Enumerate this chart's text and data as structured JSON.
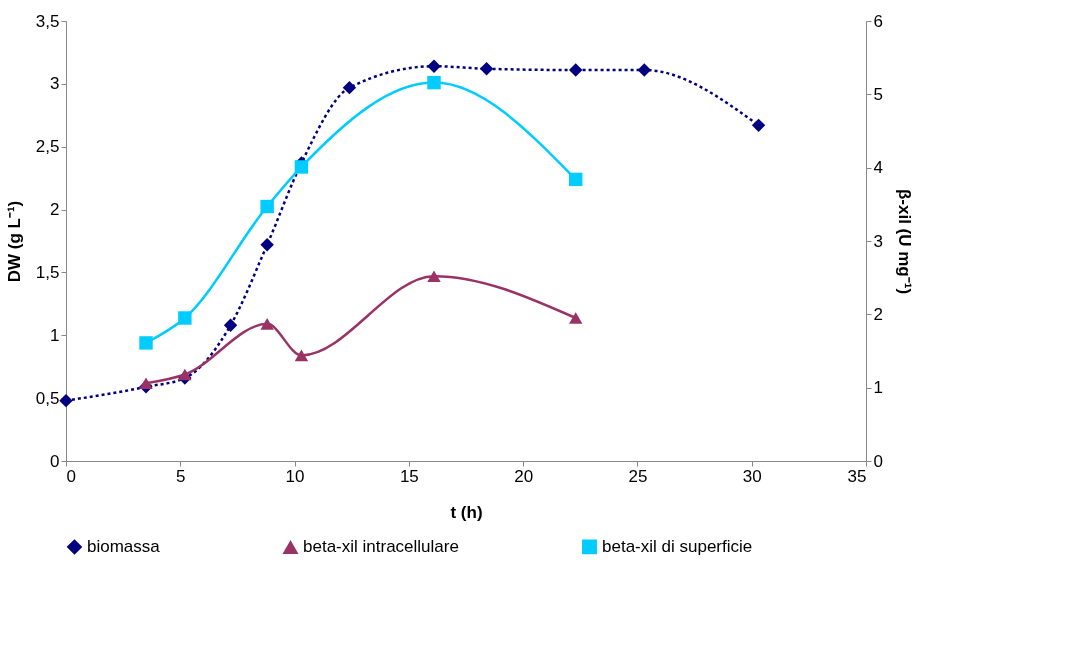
{
  "chart_data": {
    "type": "line",
    "xlabel": "t (h)",
    "ylabel": "DW (g L⁻¹)",
    "y2label": "β-xil (U mg⁻¹)",
    "xlim": [
      0,
      35
    ],
    "xticks": [
      0,
      5,
      10,
      15,
      20,
      25,
      30,
      35
    ],
    "ylim": [
      0,
      3.5
    ],
    "yticks": [
      0,
      {
        "value": 0.5,
        "label": "0,5"
      },
      1,
      {
        "value": 1.5,
        "label": "1,5"
      },
      2,
      {
        "value": 2.5,
        "label": "2,5"
      },
      3,
      {
        "value": 3.5,
        "label": "3,5"
      }
    ],
    "y2lim": [
      0,
      6
    ],
    "y2ticks": [
      0,
      1,
      2,
      3,
      4,
      5,
      6
    ],
    "grid": false,
    "legend": "bottom",
    "series": [
      {
        "name": "biomassa",
        "color": "#000080",
        "marker": "diamond",
        "line_style": "dotted",
        "x": [
          0,
          3.5,
          5.2,
          7.2,
          8.8,
          10.3,
          12.4,
          16.1,
          18.4,
          22.3,
          25.3,
          30.3
        ],
        "values": [
          0.48,
          0.59,
          0.66,
          1.08,
          1.72,
          2.37,
          2.97,
          3.14,
          3.12,
          3.11,
          3.11,
          2.67
        ]
      },
      {
        "name": "beta-xil intracellulare",
        "color": "#993366",
        "marker": "triangle",
        "line_style": "solid",
        "axis": "y2",
        "x": [
          3.5,
          5.2,
          8.8,
          10.3,
          16.1,
          22.3
        ],
        "values": [
          1.06,
          1.18,
          1.87,
          1.44,
          2.52,
          1.95
        ]
      },
      {
        "name": "beta-xil di superficie",
        "color": "#00ccff",
        "marker": "square",
        "line_style": "solid",
        "axis": "y2",
        "x": [
          3.5,
          5.2,
          8.8,
          10.3,
          16.1,
          22.3
        ],
        "values": [
          1.61,
          1.95,
          3.47,
          4.01,
          5.16,
          3.84
        ]
      }
    ]
  }
}
